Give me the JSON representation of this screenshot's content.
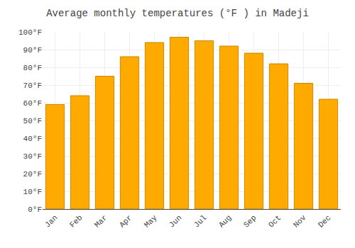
{
  "chart_data": {
    "type": "bar",
    "title": "Average monthly temperatures (°F ) in Madeji",
    "categories": [
      "Jan",
      "Feb",
      "Mar",
      "Apr",
      "May",
      "Jun",
      "Jul",
      "Aug",
      "Sep",
      "Oct",
      "Nov",
      "Dec"
    ],
    "values": [
      59,
      64,
      75,
      86,
      94,
      97,
      95,
      92,
      88,
      82,
      71,
      62
    ],
    "color": "#FFAA00",
    "ylim": [
      0,
      100
    ],
    "yticks": [
      {
        "value": 0,
        "label": "0°F"
      },
      {
        "value": 10,
        "label": "10°F"
      },
      {
        "value": 20,
        "label": "20°F"
      },
      {
        "value": 30,
        "label": "30°F"
      },
      {
        "value": 40,
        "label": "40°F"
      },
      {
        "value": 50,
        "label": "50°F"
      },
      {
        "value": 60,
        "label": "60°F"
      },
      {
        "value": 70,
        "label": "70°F"
      },
      {
        "value": 80,
        "label": "80°F"
      },
      {
        "value": 90,
        "label": "90°F"
      },
      {
        "value": 100,
        "label": "100°F"
      }
    ],
    "grid": true
  }
}
